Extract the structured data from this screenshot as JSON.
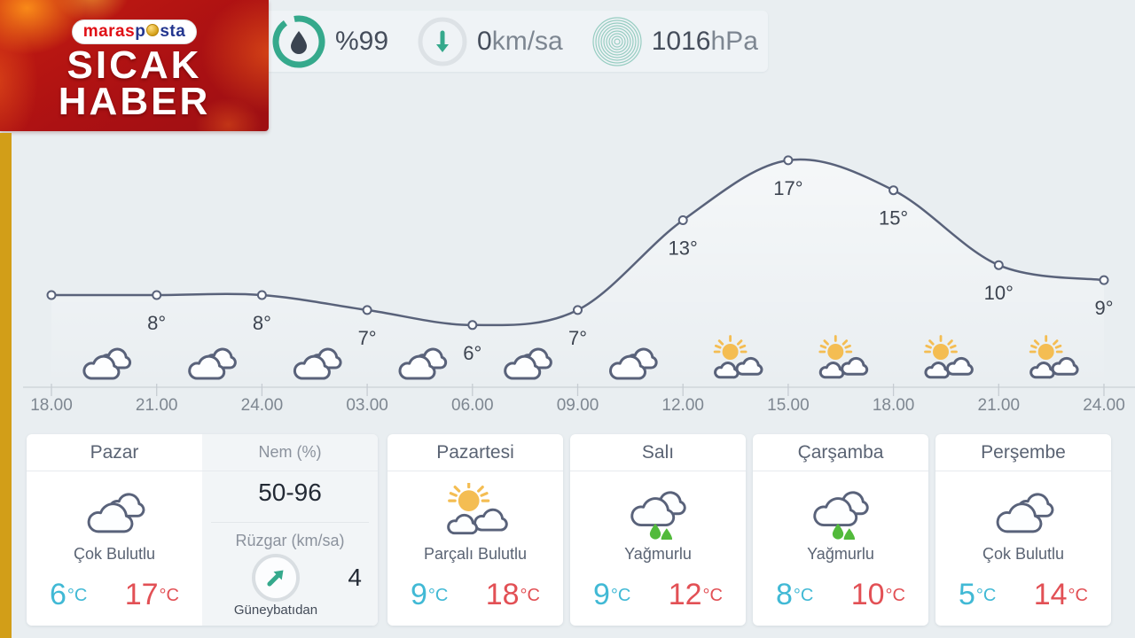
{
  "logo": {
    "brand_part1": "maras",
    "brand_part2": "p",
    "brand_part3": "sta",
    "line1": "SICAK",
    "line2": "HABER"
  },
  "topbar": {
    "humidity": {
      "text": "%99"
    },
    "wind": {
      "value": "0",
      "unit": "km/sa"
    },
    "pressure": {
      "value": "1016",
      "unit": "hPa"
    }
  },
  "units": {
    "temp": "°C"
  },
  "chart_data": {
    "type": "line",
    "title": "Hourly temperature forecast",
    "x": [
      "18.00",
      "21.00",
      "24.00",
      "03.00",
      "06.00",
      "09.00",
      "12.00",
      "15.00",
      "18.00",
      "21.00",
      "24.00"
    ],
    "temps_c": [
      8,
      8,
      8,
      7,
      6,
      7,
      13,
      17,
      15,
      10,
      9
    ],
    "point_labels": [
      "",
      "8°",
      "8°",
      "7°",
      "6°",
      "7°",
      "13°",
      "17°",
      "15°",
      "10°",
      "9°"
    ],
    "interval_icons": [
      "cloudy",
      "cloudy",
      "cloudy",
      "cloudy",
      "cloudy",
      "cloudy",
      "partly-cloudy",
      "partly-cloudy",
      "partly-cloudy",
      "partly-cloudy"
    ],
    "ylim": [
      0,
      20
    ],
    "grid": false,
    "legend": false,
    "line_color": "#59627a"
  },
  "forecast": {
    "days": [
      {
        "name": "Pazar",
        "condition": "Çok Bulutlu",
        "icon": "cloudy",
        "low": "6",
        "high": "17"
      },
      {
        "name": "Pazartesi",
        "condition": "Parçalı Bulutlu",
        "icon": "partly-cloudy",
        "low": "9",
        "high": "18"
      },
      {
        "name": "Salı",
        "condition": "Yağmurlu",
        "icon": "rainy",
        "low": "9",
        "high": "12"
      },
      {
        "name": "Çarşamba",
        "condition": "Yağmurlu",
        "icon": "rainy",
        "low": "8",
        "high": "10"
      },
      {
        "name": "Perşembe",
        "condition": "Çok Bulutlu",
        "icon": "cloudy",
        "low": "5",
        "high": "14"
      }
    ],
    "stats": {
      "humidity_label": "Nem (%)",
      "humidity_range": "50-96",
      "wind_label": "Rüzgar (km/sa)",
      "wind_direction": "Güneybatıdan",
      "wind_value": "4"
    }
  },
  "colors": {
    "accent_teal": "#35a98c",
    "line_slate": "#59627a",
    "sun_gold": "#f4bd52",
    "rain_green": "#52ba3b",
    "temp_low": "#41b9d5",
    "temp_high": "#e25055",
    "brand_red": "#b3120f",
    "strip_gold": "#d29e18"
  }
}
